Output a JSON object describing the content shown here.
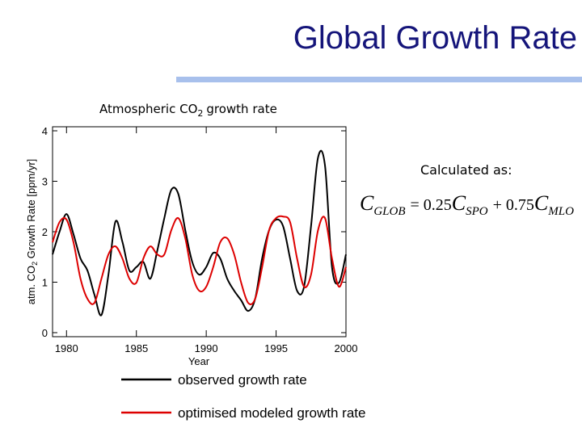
{
  "slide": {
    "title": "Global Growth Rate",
    "calc_label": "Calculated as:",
    "formula": [
      "C",
      "GLOB",
      "= 0.25",
      "C",
      "SPO",
      "+ 0.75",
      "C",
      "MLO"
    ]
  },
  "chart_data": {
    "type": "line",
    "title": [
      "Atmospheric CO",
      "2",
      "growth rate"
    ],
    "ylabel": [
      "atm. CO",
      "2",
      " Growth Rate [ppm/yr]"
    ],
    "xlabel": "Year",
    "x": [
      1979,
      1979.5,
      1980,
      1980.5,
      1981,
      1981.5,
      1982,
      1982.5,
      1983,
      1983.5,
      1984,
      1984.5,
      1985,
      1985.5,
      1986,
      1986.5,
      1987,
      1987.5,
      1988,
      1988.5,
      1989,
      1989.5,
      1990,
      1990.5,
      1991,
      1991.5,
      1992,
      1992.5,
      1993,
      1993.5,
      1994,
      1994.5,
      1995,
      1995.5,
      1996,
      1996.5,
      1997,
      1997.5,
      1998,
      1998.5,
      1999,
      1999.5,
      2000
    ],
    "series": [
      {
        "name": "observed growth rate",
        "color": "#000000",
        "values": [
          1.55,
          2.0,
          2.35,
          1.95,
          1.47,
          1.23,
          0.75,
          0.35,
          1.15,
          2.2,
          1.8,
          1.23,
          1.3,
          1.4,
          1.07,
          1.63,
          2.27,
          2.83,
          2.75,
          2.03,
          1.4,
          1.15,
          1.3,
          1.58,
          1.47,
          1.07,
          0.83,
          0.64,
          0.43,
          0.67,
          1.47,
          2.03,
          2.24,
          2.11,
          1.47,
          0.83,
          0.91,
          2.11,
          3.47,
          3.31,
          1.3,
          0.99,
          1.55
        ]
      },
      {
        "name": "optimised modeled growth rate",
        "color": "#dd0000",
        "values": [
          1.79,
          2.19,
          2.24,
          1.79,
          1.07,
          0.67,
          0.59,
          1.07,
          1.55,
          1.71,
          1.47,
          1.07,
          0.99,
          1.47,
          1.71,
          1.55,
          1.55,
          2.03,
          2.27,
          1.87,
          1.15,
          0.83,
          0.91,
          1.3,
          1.79,
          1.87,
          1.55,
          0.99,
          0.59,
          0.67,
          1.3,
          2.03,
          2.27,
          2.3,
          2.19,
          1.47,
          0.91,
          1.15,
          2.03,
          2.27,
          1.47,
          0.91,
          1.3
        ]
      }
    ],
    "xlim": [
      1979,
      2000
    ],
    "ylim": [
      0,
      4
    ],
    "xticks": [
      1980,
      1985,
      1990,
      1995,
      2000
    ],
    "yticks": [
      0,
      1,
      2,
      3,
      4
    ]
  }
}
